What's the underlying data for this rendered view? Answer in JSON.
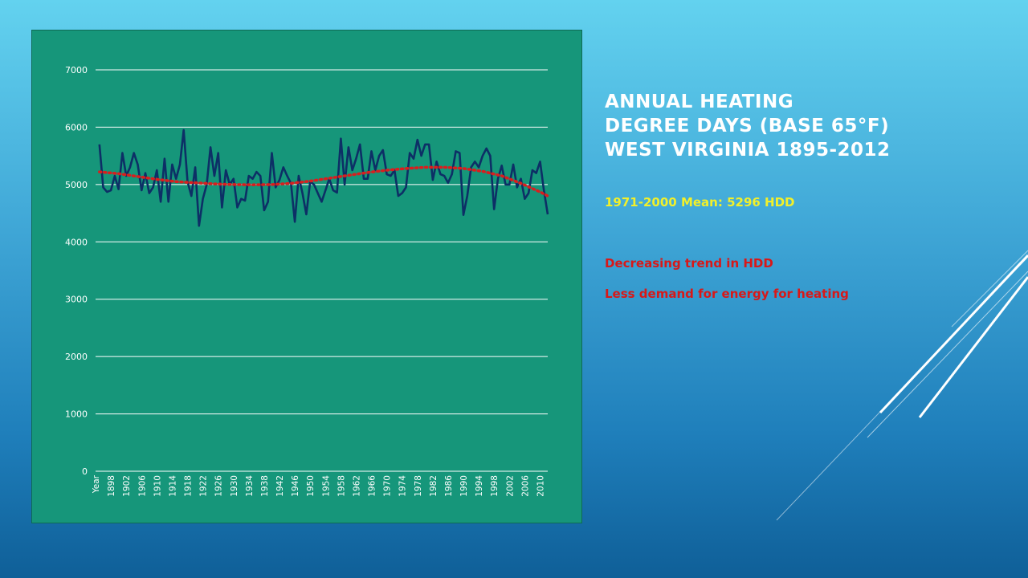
{
  "slide": {
    "title_lines": [
      "ANNUAL HEATING",
      "DEGREE DAYS (BASE 65°F)",
      "WEST VIRGINIA 1895-2012"
    ],
    "mean_text": "1971-2000 Mean: 5296 HDD",
    "notes": [
      "Decreasing trend in HDD",
      "Less demand for energy for heating"
    ]
  },
  "colors": {
    "panel": "#16967a",
    "series_line": "#0d2f66",
    "trend_line": "#d91e1e",
    "gridline": "#ffffff",
    "title_text": "#ffffff",
    "mean_text": "#f2f02a",
    "note_text": "#d81818"
  },
  "chart_data": {
    "type": "line",
    "title": "",
    "xlabel": "",
    "ylabel": "",
    "ylim": [
      0,
      7000
    ],
    "yticks": [
      0,
      1000,
      2000,
      3000,
      4000,
      5000,
      6000,
      7000
    ],
    "x_first_label": "Year",
    "xtick_labels": [
      "1898",
      "1902",
      "1906",
      "1910",
      "1914",
      "1918",
      "1922",
      "1926",
      "1930",
      "1934",
      "1938",
      "1942",
      "1946",
      "1950",
      "1954",
      "1958",
      "1962",
      "1966",
      "1970",
      "1974",
      "1978",
      "1982",
      "1986",
      "1990",
      "1994",
      "1998",
      "2002",
      "2006",
      "2010"
    ],
    "grid": true,
    "legend": "none",
    "series": [
      {
        "kind": "annual",
        "x": [
          1895,
          1896,
          1897,
          1898,
          1899,
          1900,
          1901,
          1902,
          1903,
          1904,
          1905,
          1906,
          1907,
          1908,
          1909,
          1910,
          1911,
          1912,
          1913,
          1914,
          1915,
          1916,
          1917,
          1918,
          1919,
          1920,
          1921,
          1922,
          1923,
          1924,
          1925,
          1926,
          1927,
          1928,
          1929,
          1930,
          1931,
          1932,
          1933,
          1934,
          1935,
          1936,
          1937,
          1938,
          1939,
          1940,
          1941,
          1942,
          1943,
          1944,
          1945,
          1946,
          1947,
          1948,
          1949,
          1950,
          1951,
          1952,
          1953,
          1954,
          1955,
          1956,
          1957,
          1958,
          1959,
          1960,
          1961,
          1962,
          1963,
          1964,
          1965,
          1966,
          1967,
          1968,
          1969,
          1970,
          1971,
          1972,
          1973,
          1974,
          1975,
          1976,
          1977,
          1978,
          1979,
          1980,
          1981,
          1982,
          1983,
          1984,
          1985,
          1986,
          1987,
          1988,
          1989,
          1990,
          1991,
          1992,
          1993,
          1994,
          1995,
          1996,
          1997,
          1998,
          1999,
          2000,
          2001,
          2002,
          2003,
          2004,
          2005,
          2006,
          2007,
          2008,
          2009,
          2010,
          2011,
          2012
        ],
        "values": [
          5700,
          4950,
          4870,
          4900,
          5150,
          4920,
          5550,
          5150,
          5300,
          5550,
          5350,
          4900,
          5200,
          4850,
          4950,
          5250,
          4700,
          5450,
          4700,
          5350,
          5100,
          5350,
          5950,
          5050,
          4800,
          5300,
          4280,
          4750,
          5000,
          5650,
          5150,
          5550,
          4600,
          5250,
          5000,
          5100,
          4600,
          4750,
          4720,
          5150,
          5100,
          5220,
          5150,
          4550,
          4700,
          5550,
          4950,
          5080,
          5300,
          5150,
          5020,
          4350,
          5150,
          4850,
          4480,
          5050,
          5000,
          4850,
          4700,
          4900,
          5100,
          4900,
          4860,
          5800,
          5000,
          5650,
          5250,
          5450,
          5700,
          5100,
          5100,
          5580,
          5250,
          5500,
          5600,
          5180,
          5150,
          5250,
          4800,
          4850,
          4950,
          5550,
          5450,
          5780,
          5500,
          5700,
          5700,
          5080,
          5400,
          5180,
          5150,
          5030,
          5180,
          5580,
          5550,
          4470,
          4800,
          5300,
          5400,
          5300,
          5500,
          5630,
          5500,
          4570,
          5100,
          5330,
          5000,
          5000,
          5350,
          4950,
          5100,
          4750,
          4850,
          5250,
          5200,
          5400,
          4900,
          4480
        ]
      },
      {
        "kind": "trend",
        "x": [
          1895,
          1900,
          1905,
          1910,
          1915,
          1920,
          1925,
          1930,
          1935,
          1940,
          1945,
          1950,
          1955,
          1960,
          1965,
          1970,
          1975,
          1980,
          1985,
          1990,
          1995,
          2000,
          2005,
          2010,
          2012
        ],
        "values": [
          5220,
          5190,
          5140,
          5090,
          5050,
          5030,
          5010,
          5000,
          4995,
          5000,
          5020,
          5060,
          5110,
          5160,
          5210,
          5250,
          5280,
          5300,
          5300,
          5280,
          5230,
          5150,
          5020,
          4870,
          4800
        ]
      }
    ]
  }
}
